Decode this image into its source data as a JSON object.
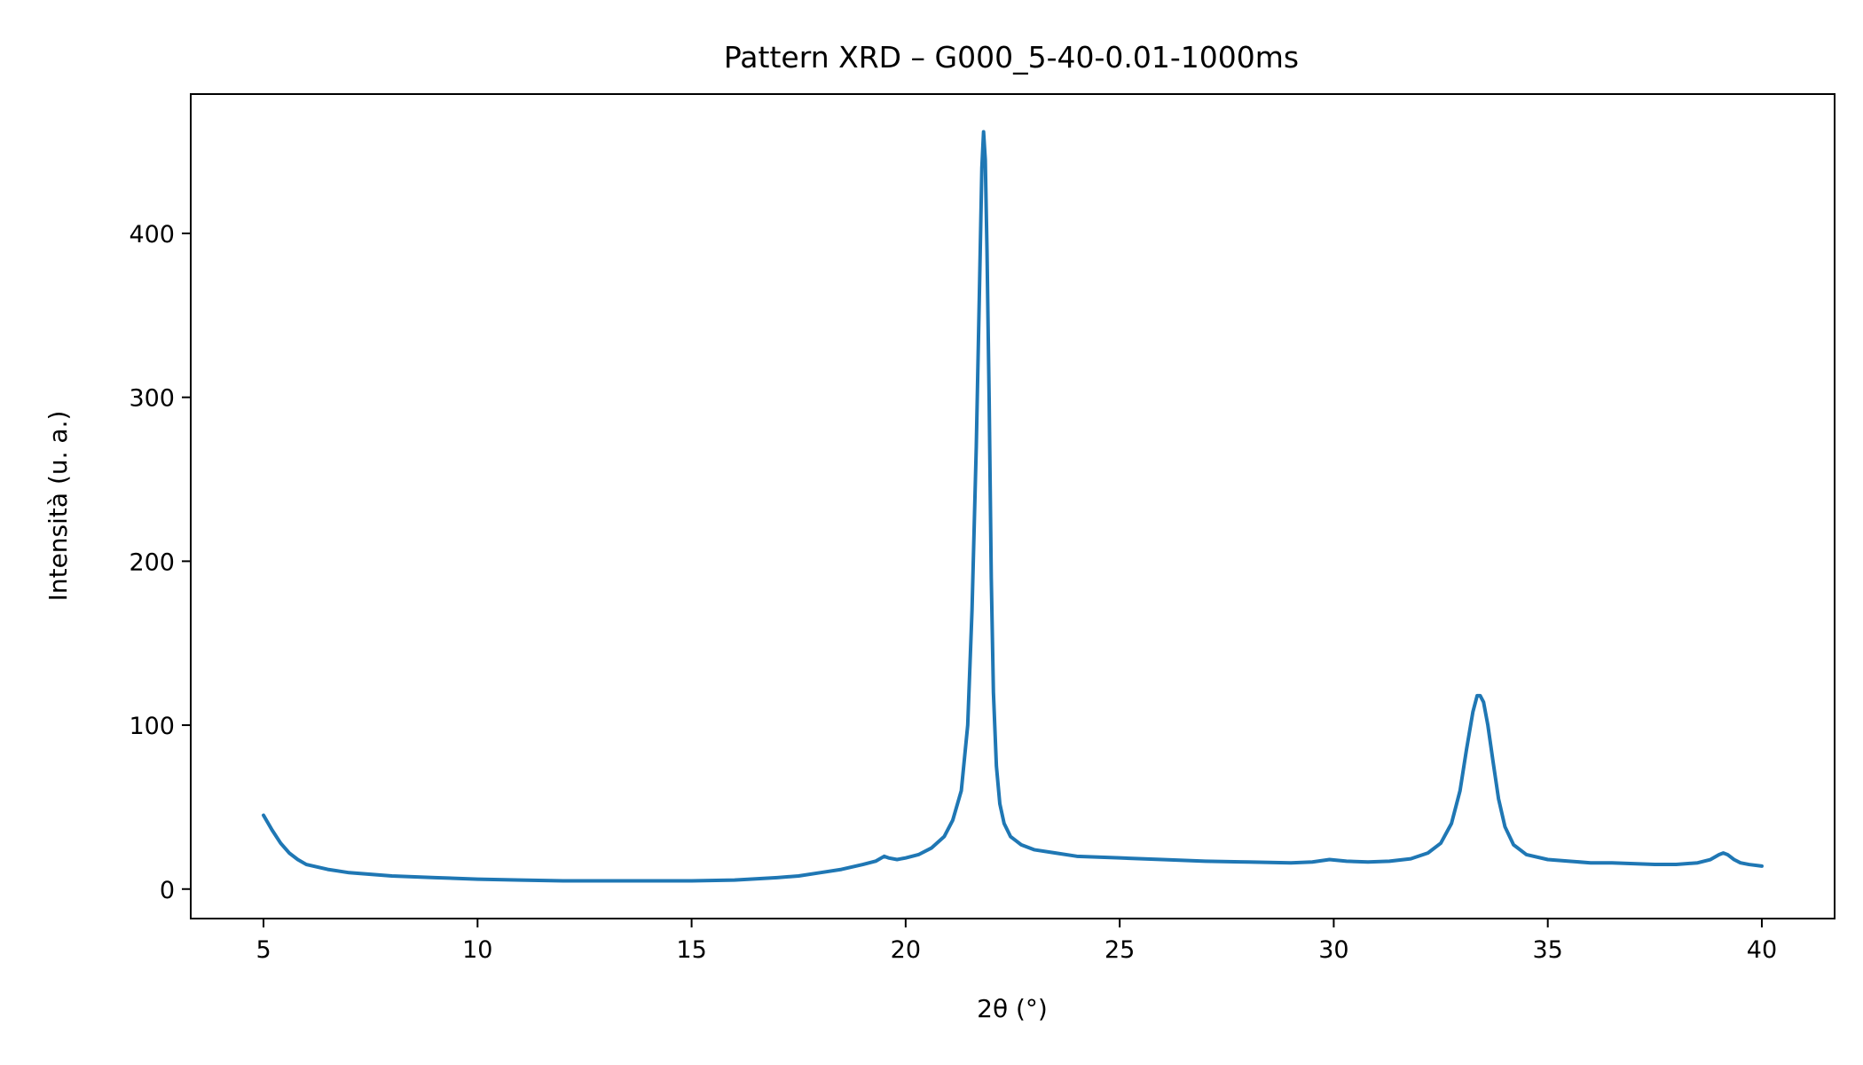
{
  "chart_data": {
    "type": "line",
    "title": "Pattern XRD – G000_5-40-0.01-1000ms",
    "xlabel": "2θ (°)",
    "ylabel": "Intensità (u. a.)",
    "xlim": [
      3.3,
      41.7
    ],
    "ylim": [
      -18,
      485
    ],
    "xticks": [
      5,
      10,
      15,
      20,
      25,
      30,
      35,
      40
    ],
    "yticks": [
      0,
      100,
      200,
      300,
      400
    ],
    "grid": false,
    "series": [
      {
        "color": "#1f77b4",
        "x": [
          5.0,
          5.2,
          5.4,
          5.6,
          5.8,
          6.0,
          6.5,
          7.0,
          8.0,
          9.0,
          10.0,
          11.0,
          12.0,
          13.0,
          14.0,
          15.0,
          16.0,
          17.0,
          17.5,
          18.0,
          18.5,
          19.0,
          19.3,
          19.5,
          19.6,
          19.8,
          20.0,
          20.3,
          20.6,
          20.9,
          21.1,
          21.3,
          21.45,
          21.55,
          21.65,
          21.72,
          21.78,
          21.82,
          21.86,
          21.9,
          21.95,
          22.0,
          22.05,
          22.12,
          22.2,
          22.3,
          22.45,
          22.7,
          23.0,
          23.5,
          24.0,
          25.0,
          26.0,
          27.0,
          28.0,
          29.0,
          29.5,
          29.9,
          30.3,
          30.8,
          31.3,
          31.8,
          32.2,
          32.5,
          32.75,
          32.95,
          33.1,
          33.25,
          33.35,
          33.42,
          33.5,
          33.6,
          33.72,
          33.85,
          34.0,
          34.2,
          34.5,
          35.0,
          35.5,
          36.0,
          36.5,
          37.0,
          37.5,
          38.0,
          38.5,
          38.8,
          39.0,
          39.1,
          39.2,
          39.35,
          39.5,
          39.7,
          40.0
        ],
        "y": [
          45,
          36,
          28,
          22,
          18,
          15,
          12,
          10,
          8,
          7,
          6,
          5.5,
          5,
          5,
          5,
          5,
          5.5,
          7,
          8,
          10,
          12,
          15,
          17,
          20,
          19,
          18,
          19,
          21,
          25,
          32,
          42,
          60,
          100,
          170,
          270,
          360,
          440,
          462,
          445,
          390,
          300,
          190,
          120,
          75,
          52,
          40,
          32,
          27,
          24,
          22,
          20,
          19,
          18,
          17,
          16.5,
          16,
          16.5,
          18,
          17,
          16.5,
          17,
          18.5,
          22,
          28,
          40,
          60,
          85,
          108,
          118,
          118,
          114,
          100,
          78,
          55,
          38,
          27,
          21,
          18,
          17,
          16,
          16,
          15.5,
          15,
          15,
          16,
          18,
          21,
          22,
          21,
          18,
          16,
          15,
          14
        ]
      }
    ]
  }
}
